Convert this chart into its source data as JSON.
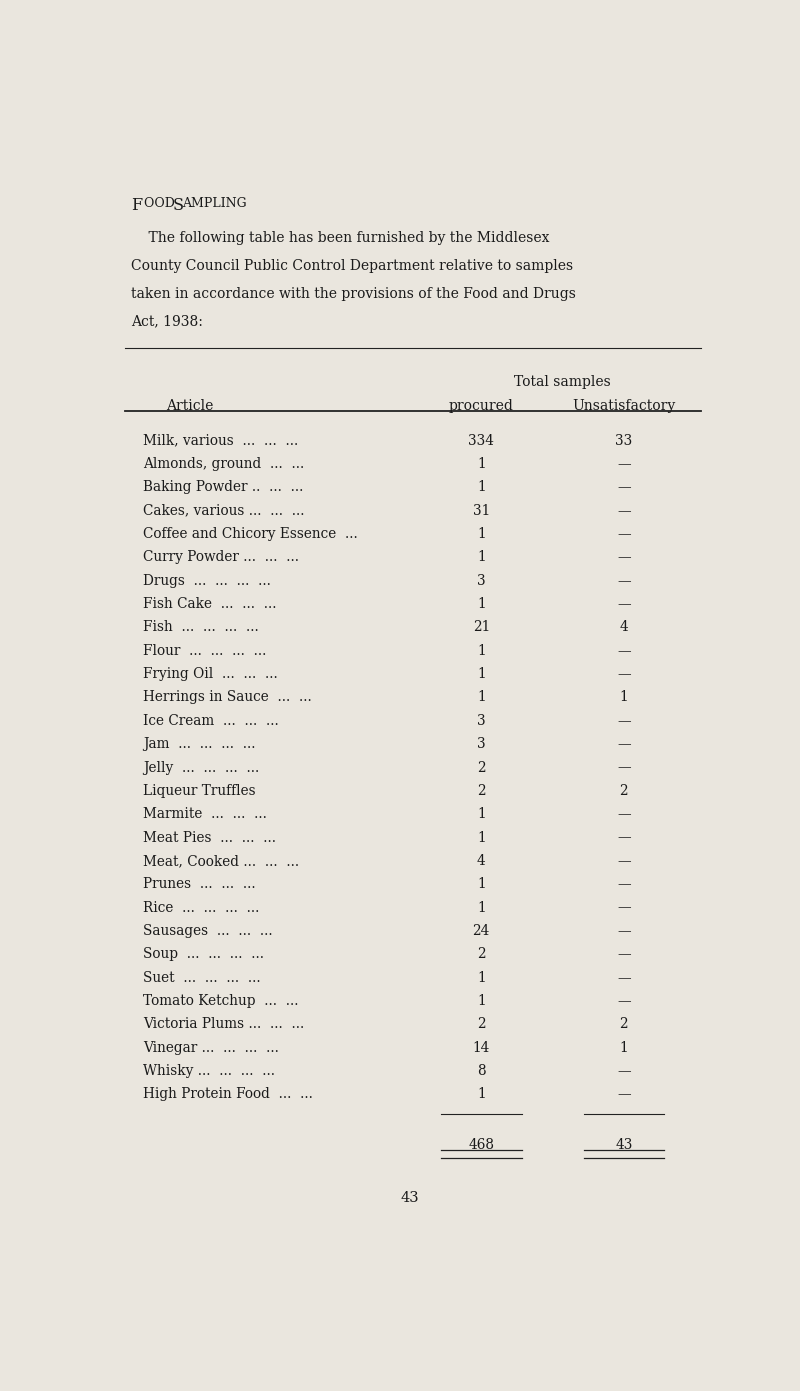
{
  "title_big": "F",
  "title_small1": "OOD ",
  "title_big2": "S",
  "title_small2": "AMPLING",
  "intro_lines": [
    "    The following table has been furnished by the Middlesex",
    "County Council Public Control Department relative to samples",
    "taken in accordance with the provisions of the Food and Drugs",
    "Act, 1938:"
  ],
  "header_row1": "Total samples",
  "col1_header": "Article",
  "col2_header": "procured",
  "col3_header": "Unsatisfactory",
  "rows": [
    [
      "Milk, various  ...  ...  ...",
      "334",
      "33"
    ],
    [
      "Almonds, ground  ...  ...",
      "1",
      "—"
    ],
    [
      "Baking Powder ..  ...  ...",
      "1",
      "—"
    ],
    [
      "Cakes, various ...  ...  ...",
      "31",
      "—"
    ],
    [
      "Coffee and Chicory Essence  ...",
      "1",
      "—"
    ],
    [
      "Curry Powder ...  ...  ...",
      "1",
      "—"
    ],
    [
      "Drugs  ...  ...  ...  ...",
      "3",
      "—"
    ],
    [
      "Fish Cake  ...  ...  ...",
      "1",
      "—"
    ],
    [
      "Fish  ...  ...  ...  ...",
      "21",
      "4"
    ],
    [
      "Flour  ...  ...  ...  ...",
      "1",
      "—"
    ],
    [
      "Frying Oil  ...  ...  ...",
      "1",
      "—"
    ],
    [
      "Herrings in Sauce  ...  ...",
      "1",
      "1"
    ],
    [
      "Ice Cream  ...  ...  ...",
      "3",
      "—"
    ],
    [
      "Jam  ...  ...  ...  ...",
      "3",
      "—"
    ],
    [
      "Jelly  ...  ...  ...  ...",
      "2",
      "—"
    ],
    [
      "Liqueur Truffles",
      "2",
      "2"
    ],
    [
      "Marmite  ...  ...  ...",
      "1",
      "—"
    ],
    [
      "Meat Pies  ...  ...  ...",
      "1",
      "—"
    ],
    [
      "Meat, Cooked ...  ...  ...",
      "4",
      "—"
    ],
    [
      "Prunes  ...  ...  ...",
      "1",
      "—"
    ],
    [
      "Rice  ...  ...  ...  ...",
      "1",
      "—"
    ],
    [
      "Sausages  ...  ...  ...",
      "24",
      "—"
    ],
    [
      "Soup  ...  ...  ...  ...",
      "2",
      "—"
    ],
    [
      "Suet  ...  ...  ...  ...",
      "1",
      "—"
    ],
    [
      "Tomato Ketchup  ...  ...",
      "1",
      "—"
    ],
    [
      "Victoria Plums ...  ...  ...",
      "2",
      "2"
    ],
    [
      "Vinegar ...  ...  ...  ...",
      "14",
      "1"
    ],
    [
      "Whisky ...  ...  ...  ...",
      "8",
      "—"
    ],
    [
      "High Protein Food  ...  ...",
      "1",
      "—"
    ]
  ],
  "total_procured": "468",
  "total_unsat": "43",
  "page_number": "43",
  "bg_color": "#eae6de",
  "text_color": "#1a1a1a",
  "line_color": "#222222"
}
